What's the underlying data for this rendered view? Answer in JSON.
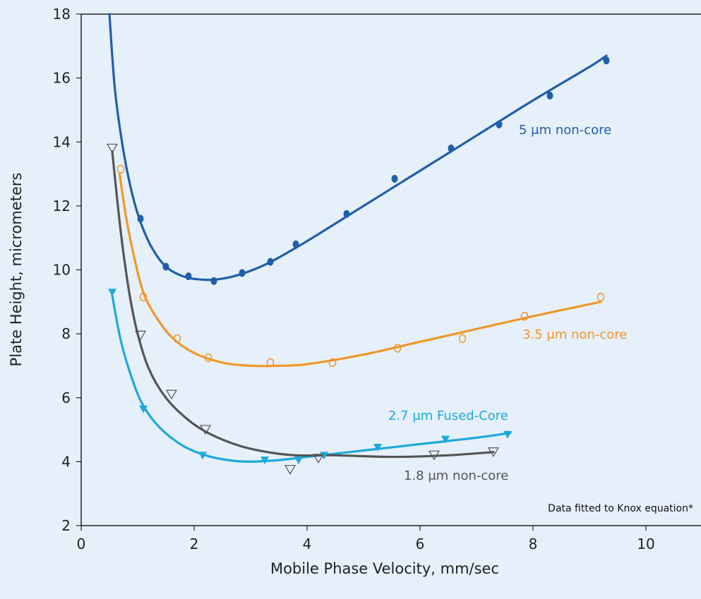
{
  "chart_data": {
    "type": "scatter",
    "xlabel": "Mobile Phase Velocity, mm/sec",
    "ylabel": "Plate Height, micrometers",
    "xlim": [
      0,
      11
    ],
    "ylim": [
      2,
      18
    ],
    "xticks": [
      0,
      2,
      4,
      6,
      8,
      10
    ],
    "yticks": [
      2,
      4,
      6,
      8,
      10,
      12,
      14,
      16,
      18
    ],
    "grid": false,
    "note": "Data fitted to Knox equation*",
    "series": [
      {
        "name": "5 μm non-core",
        "color": "#1f5fa8",
        "marker": "filled-circle",
        "points": [
          [
            1.05,
            11.6
          ],
          [
            1.5,
            10.1
          ],
          [
            1.9,
            9.8
          ],
          [
            2.35,
            9.65
          ],
          [
            2.85,
            9.9
          ],
          [
            3.35,
            10.25
          ],
          [
            3.8,
            10.8
          ],
          [
            4.7,
            11.75
          ],
          [
            5.55,
            12.85
          ],
          [
            6.55,
            13.8
          ],
          [
            7.4,
            14.55
          ],
          [
            8.3,
            15.45
          ],
          [
            9.3,
            16.55
          ]
        ],
        "curve": [
          [
            0.5,
            18
          ],
          [
            0.6,
            15.6
          ],
          [
            0.75,
            13.7
          ],
          [
            0.9,
            12.4
          ],
          [
            1.05,
            11.5
          ],
          [
            1.25,
            10.7
          ],
          [
            1.5,
            10.1
          ],
          [
            1.8,
            9.8
          ],
          [
            2.1,
            9.7
          ],
          [
            2.4,
            9.7
          ],
          [
            2.8,
            9.85
          ],
          [
            3.3,
            10.2
          ],
          [
            4.0,
            10.9
          ],
          [
            5.0,
            12.0
          ],
          [
            6.0,
            13.1
          ],
          [
            7.0,
            14.2
          ],
          [
            8.0,
            15.3
          ],
          [
            9.0,
            16.35
          ],
          [
            9.3,
            16.7
          ]
        ]
      },
      {
        "name": "3.5 μm non-core",
        "color": "#f0962a",
        "marker": "open-circle",
        "points": [
          [
            0.7,
            13.15
          ],
          [
            1.1,
            9.15
          ],
          [
            1.7,
            7.85
          ],
          [
            2.25,
            7.25
          ],
          [
            3.35,
            7.1
          ],
          [
            4.45,
            7.1
          ],
          [
            5.6,
            7.55
          ],
          [
            6.75,
            7.85
          ],
          [
            7.85,
            8.55
          ],
          [
            9.2,
            9.15
          ]
        ],
        "curve": [
          [
            0.68,
            13.0
          ],
          [
            0.8,
            11.6
          ],
          [
            0.95,
            10.3
          ],
          [
            1.1,
            9.3
          ],
          [
            1.3,
            8.6
          ],
          [
            1.6,
            7.9
          ],
          [
            2.0,
            7.4
          ],
          [
            2.5,
            7.1
          ],
          [
            3.0,
            7.0
          ],
          [
            3.5,
            7.0
          ],
          [
            4.0,
            7.05
          ],
          [
            5.0,
            7.35
          ],
          [
            6.0,
            7.75
          ],
          [
            7.0,
            8.15
          ],
          [
            8.0,
            8.55
          ],
          [
            9.2,
            9.0
          ]
        ]
      },
      {
        "name": "2.7 μm Fused-Core",
        "color": "#1ea9dc",
        "marker": "filled-triangle-down",
        "points": [
          [
            0.55,
            9.3
          ],
          [
            1.1,
            5.65
          ],
          [
            2.15,
            4.2
          ],
          [
            3.25,
            4.05
          ],
          [
            3.85,
            4.05
          ],
          [
            4.3,
            4.2
          ],
          [
            5.25,
            4.45
          ],
          [
            6.45,
            4.7
          ],
          [
            7.55,
            4.85
          ]
        ],
        "curve": [
          [
            0.55,
            9.2
          ],
          [
            0.7,
            7.8
          ],
          [
            0.9,
            6.6
          ],
          [
            1.1,
            5.75
          ],
          [
            1.4,
            5.05
          ],
          [
            1.8,
            4.5
          ],
          [
            2.2,
            4.2
          ],
          [
            2.6,
            4.05
          ],
          [
            3.0,
            4.0
          ],
          [
            3.5,
            4.05
          ],
          [
            4.0,
            4.15
          ],
          [
            5.0,
            4.35
          ],
          [
            6.0,
            4.55
          ],
          [
            7.0,
            4.75
          ],
          [
            7.6,
            4.9
          ]
        ]
      },
      {
        "name": "1.8 μm non-core",
        "color": "#555555",
        "marker": "open-triangle-down",
        "points": [
          [
            0.55,
            13.8
          ],
          [
            1.05,
            7.95
          ],
          [
            1.6,
            6.1
          ],
          [
            2.2,
            5.0
          ],
          [
            3.7,
            3.75
          ],
          [
            4.2,
            4.1
          ],
          [
            6.25,
            4.2
          ],
          [
            7.3,
            4.3
          ]
        ],
        "curve": [
          [
            0.55,
            13.7
          ],
          [
            0.7,
            11.2
          ],
          [
            0.85,
            9.3
          ],
          [
            1.0,
            8.0
          ],
          [
            1.2,
            6.9
          ],
          [
            1.5,
            6.0
          ],
          [
            1.9,
            5.3
          ],
          [
            2.3,
            4.85
          ],
          [
            2.8,
            4.5
          ],
          [
            3.3,
            4.3
          ],
          [
            3.8,
            4.2
          ],
          [
            4.5,
            4.2
          ],
          [
            5.5,
            4.15
          ],
          [
            6.5,
            4.2
          ],
          [
            7.3,
            4.3
          ]
        ]
      }
    ]
  }
}
